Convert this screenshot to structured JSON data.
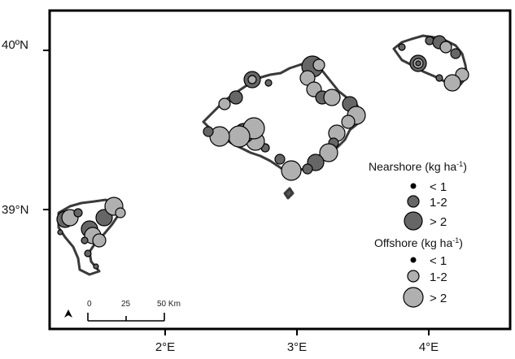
{
  "map": {
    "x_ticks": [
      "2°E",
      "3°E",
      "4°E"
    ],
    "y_ticks": [
      "40ºN",
      "39°N"
    ],
    "north_arrow": "north-arrow-icon"
  },
  "scale_bar": {
    "ticks": [
      "0",
      "25",
      "50 Km"
    ]
  },
  "legend": {
    "nearshore": {
      "title": "Nearshore (kg ha",
      "title_sup": "-1",
      "title_end": ")",
      "classes": [
        "< 1",
        "1-2",
        "> 2"
      ],
      "color": "#666666"
    },
    "offshore": {
      "title": "Offshore (kg ha",
      "title_sup": "-1",
      "title_end": ")",
      "classes": [
        "< 1",
        "1-2",
        "> 2"
      ],
      "color": "#b0b0b0"
    }
  }
}
